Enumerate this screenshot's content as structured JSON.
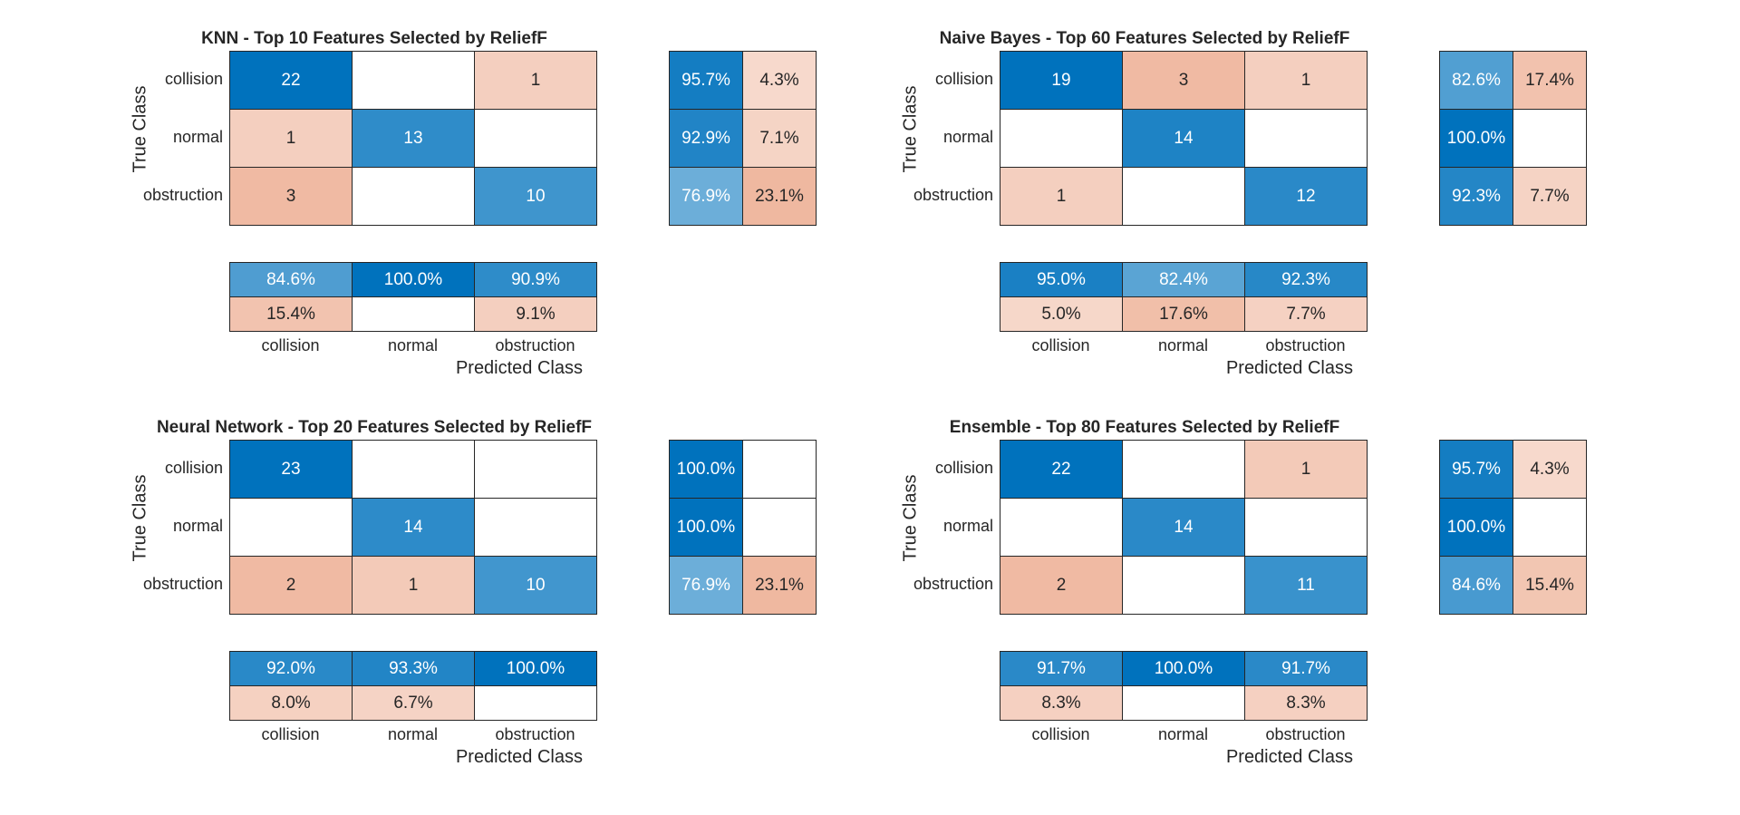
{
  "chart_data": [
    {
      "type": "heatmap",
      "title": "KNN - Top 10 Features Selected by ReliefF",
      "xlabel": "Predicted Class",
      "ylabel": "True Class",
      "classes": [
        "collision",
        "normal",
        "obstruction"
      ],
      "matrix": [
        [
          22,
          0,
          1
        ],
        [
          1,
          13,
          0
        ],
        [
          3,
          0,
          10
        ]
      ],
      "row_summary": [
        [
          "95.7%",
          "4.3%"
        ],
        [
          "92.9%",
          "7.1%"
        ],
        [
          "76.9%",
          "23.1%"
        ]
      ],
      "column_summary": [
        [
          "84.6%",
          "100.0%",
          "90.9%"
        ],
        [
          "15.4%",
          "",
          "9.1%"
        ]
      ]
    },
    {
      "type": "heatmap",
      "title": "Naive Bayes - Top 60 Features Selected by ReliefF",
      "xlabel": "Predicted Class",
      "ylabel": "True Class",
      "classes": [
        "collision",
        "normal",
        "obstruction"
      ],
      "matrix": [
        [
          19,
          3,
          1
        ],
        [
          0,
          14,
          0
        ],
        [
          1,
          0,
          12
        ]
      ],
      "row_summary": [
        [
          "82.6%",
          "17.4%"
        ],
        [
          "100.0%",
          ""
        ],
        [
          "92.3%",
          "7.7%"
        ]
      ],
      "column_summary": [
        [
          "95.0%",
          "82.4%",
          "92.3%"
        ],
        [
          "5.0%",
          "17.6%",
          "7.7%"
        ]
      ]
    },
    {
      "type": "heatmap",
      "title": "Neural Network - Top 20 Features Selected by ReliefF",
      "xlabel": "Predicted Class",
      "ylabel": "True Class",
      "classes": [
        "collision",
        "normal",
        "obstruction"
      ],
      "matrix": [
        [
          23,
          0,
          0
        ],
        [
          0,
          14,
          0
        ],
        [
          2,
          1,
          10
        ]
      ],
      "row_summary": [
        [
          "100.0%",
          ""
        ],
        [
          "100.0%",
          ""
        ],
        [
          "76.9%",
          "23.1%"
        ]
      ],
      "column_summary": [
        [
          "92.0%",
          "93.3%",
          "100.0%"
        ],
        [
          "8.0%",
          "6.7%",
          ""
        ]
      ]
    },
    {
      "type": "heatmap",
      "title": "Ensemble - Top 80 Features Selected by ReliefF",
      "xlabel": "Predicted Class",
      "ylabel": "True Class",
      "classes": [
        "collision",
        "normal",
        "obstruction"
      ],
      "matrix": [
        [
          22,
          0,
          1
        ],
        [
          0,
          14,
          0
        ],
        [
          2,
          0,
          11
        ]
      ],
      "row_summary": [
        [
          "95.7%",
          "4.3%"
        ],
        [
          "100.0%",
          ""
        ],
        [
          "84.6%",
          "15.4%"
        ]
      ],
      "column_summary": [
        [
          "91.7%",
          "100.0%",
          "91.7%"
        ],
        [
          "8.3%",
          "",
          "8.3%"
        ]
      ]
    }
  ],
  "colors": {
    "correct_dark": "#0072bd",
    "correct_light": "#ffffff",
    "incorrect_dark": "#d95319",
    "text_light": "#ffffff",
    "text_dark": "#262626"
  }
}
